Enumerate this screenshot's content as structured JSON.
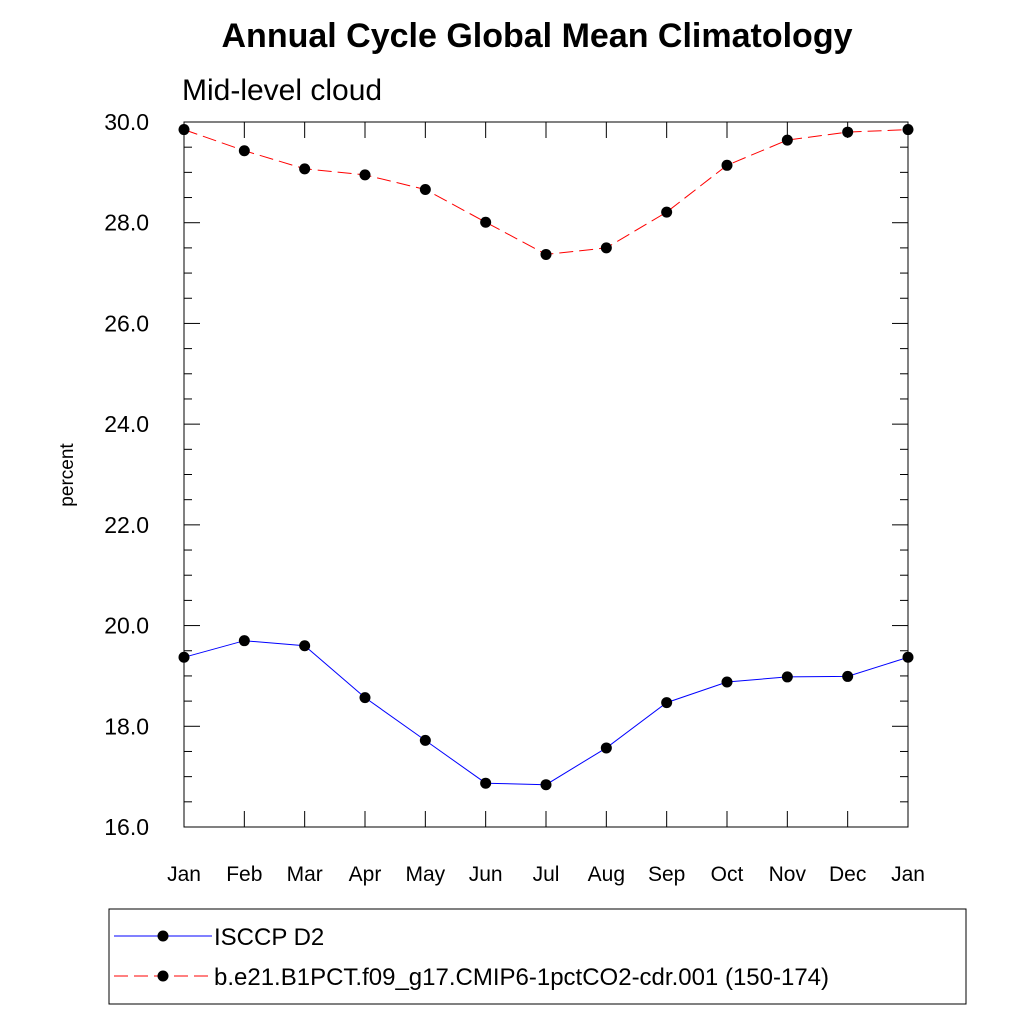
{
  "chart_data": {
    "type": "line",
    "title": "Annual Cycle Global Mean Climatology",
    "subtitle": "Mid-level cloud",
    "xlabel": "",
    "ylabel": "percent",
    "categories": [
      "Jan",
      "Feb",
      "Mar",
      "Apr",
      "May",
      "Jun",
      "Jul",
      "Aug",
      "Sep",
      "Oct",
      "Nov",
      "Dec",
      "Jan"
    ],
    "ylim": [
      16.0,
      30.0
    ],
    "y_ticks": [
      "16.0",
      "18.0",
      "20.0",
      "22.0",
      "24.0",
      "26.0",
      "28.0",
      "30.0"
    ],
    "grid": false,
    "legend_position": "bottom",
    "series": [
      {
        "name": "ISCCP D2",
        "color": "#0000ff",
        "dash": "solid",
        "marker": "filled-circle",
        "values": [
          19.37,
          19.7,
          19.6,
          18.57,
          17.72,
          16.87,
          16.84,
          17.57,
          18.47,
          18.88,
          18.98,
          18.99,
          19.37
        ]
      },
      {
        "name": "b.e21.B1PCT.f09_g17.CMIP6-1pctCO2-cdr.001 (150-174)",
        "color": "#ff0000",
        "dash": "dashed",
        "marker": "filled-circle",
        "values": [
          29.85,
          29.43,
          29.07,
          28.95,
          28.66,
          28.01,
          27.37,
          27.5,
          28.21,
          29.14,
          29.64,
          29.8,
          29.85
        ]
      }
    ]
  }
}
